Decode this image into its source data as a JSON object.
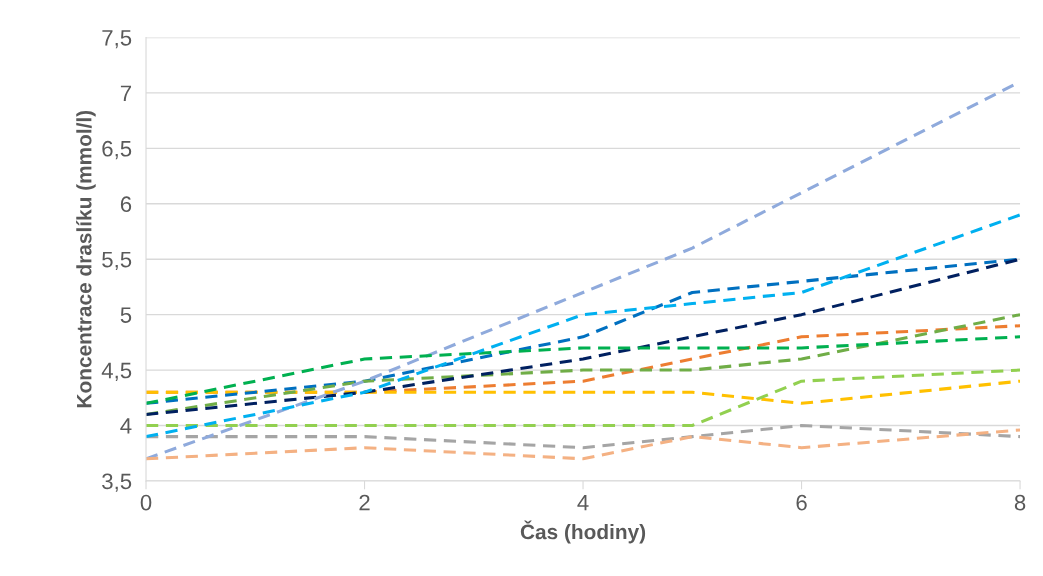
{
  "chart_data": {
    "type": "line",
    "xlabel": "Čas (hodiny)",
    "ylabel": "Koncentrace draslíku (mmol/l)",
    "x": [
      0,
      2,
      4,
      5,
      6,
      8
    ],
    "series": [
      {
        "color": "#ed7d31",
        "values": [
          4.3,
          4.3,
          4.4,
          4.6,
          4.8,
          4.9
        ]
      },
      {
        "color": "#a5a5a5",
        "values": [
          3.9,
          3.9,
          3.8,
          3.9,
          4.0,
          3.9
        ]
      },
      {
        "color": "#ffc000",
        "values": [
          4.3,
          4.3,
          4.3,
          4.3,
          4.2,
          4.4
        ]
      },
      {
        "color": "#0070c0",
        "values": [
          4.2,
          4.4,
          4.8,
          5.2,
          5.3,
          5.5
        ]
      },
      {
        "color": "#70ad47",
        "values": [
          4.1,
          4.4,
          4.5,
          4.5,
          4.6,
          5.0
        ]
      },
      {
        "color": "#002060",
        "values": [
          4.1,
          4.3,
          4.6,
          4.8,
          5.0,
          5.5
        ]
      },
      {
        "color": "#8faadc",
        "values": [
          3.7,
          4.4,
          5.2,
          5.6,
          6.1,
          7.1
        ]
      },
      {
        "color": "#f4b183",
        "values": [
          3.7,
          3.8,
          3.7,
          3.9,
          3.8,
          3.96
        ]
      },
      {
        "color": "#92d050",
        "values": [
          4.0,
          4.0,
          4.0,
          4.0,
          4.4,
          4.5
        ]
      },
      {
        "color": "#00b050",
        "values": [
          4.2,
          4.6,
          4.7,
          4.7,
          4.7,
          4.8
        ]
      },
      {
        "color": "#00b0f0",
        "values": [
          3.9,
          4.3,
          5.0,
          5.1,
          5.2,
          5.9
        ]
      }
    ],
    "xlim": [
      0,
      8
    ],
    "xticks": [
      0,
      2,
      4,
      6,
      8
    ],
    "ylim": [
      3.5,
      7.5
    ],
    "yticks": [
      {
        "value": 3.5,
        "label": "3,5"
      },
      4,
      {
        "value": 4.5,
        "label": "4,5"
      },
      5,
      {
        "value": 5.5,
        "label": "5,5"
      },
      6,
      {
        "value": 6.5,
        "label": "6,5"
      },
      7,
      {
        "value": 7.5,
        "label": "7,5"
      }
    ],
    "grid": "y",
    "line_style": "dashed",
    "marker": "none"
  }
}
